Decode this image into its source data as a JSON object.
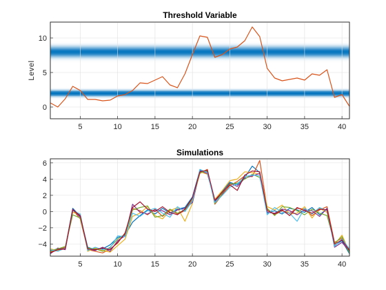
{
  "chart_data": [
    {
      "type": "line",
      "title": "Threshold Variable",
      "xlabel": "",
      "ylabel": "Level",
      "xlim": [
        1,
        41
      ],
      "ylim": [
        -1.7,
        12.3
      ],
      "x_ticks": [
        5,
        10,
        15,
        20,
        25,
        30,
        35,
        40
      ],
      "y_ticks": [
        0,
        5,
        10
      ],
      "grid": true,
      "threshold_bands": [
        {
          "center": 2,
          "spread": 0.9
        },
        {
          "center": 8,
          "spread": 1.6
        }
      ],
      "band_color": "#0072BD",
      "series": [
        {
          "color": "#D95319",
          "x": [
            1,
            2,
            3,
            4,
            5,
            6,
            7,
            8,
            9,
            10,
            11,
            12,
            13,
            14,
            15,
            16,
            17,
            18,
            19,
            20,
            21,
            22,
            23,
            24,
            25,
            26,
            27,
            28,
            29,
            30,
            31,
            32,
            33,
            34,
            35,
            36,
            37,
            38,
            39,
            40,
            41
          ],
          "values": [
            0.6,
            0.0,
            1.2,
            3.0,
            2.4,
            1.1,
            1.1,
            0.9,
            1.0,
            1.6,
            1.8,
            2.4,
            3.5,
            3.4,
            3.9,
            4.4,
            3.2,
            2.8,
            4.8,
            7.6,
            10.3,
            10.1,
            7.2,
            7.6,
            8.4,
            8.7,
            9.6,
            11.6,
            10.2,
            5.6,
            4.2,
            3.8,
            4.0,
            4.2,
            3.9,
            4.8,
            4.6,
            5.4,
            1.4,
            1.8,
            0.1
          ]
        }
      ]
    },
    {
      "type": "line",
      "title": "Simulations",
      "xlabel": "",
      "ylabel": "",
      "xlim": [
        1,
        41
      ],
      "ylim": [
        -5.5,
        6.5
      ],
      "x_ticks": [
        5,
        10,
        15,
        20,
        25,
        30,
        35,
        40
      ],
      "y_ticks": [
        -4,
        -2,
        0,
        2,
        4,
        6
      ],
      "grid": true,
      "series": [
        {
          "color": "#0072BD",
          "x": [
            1,
            2,
            3,
            4,
            5,
            6,
            7,
            8,
            9,
            10,
            11,
            12,
            13,
            14,
            15,
            16,
            17,
            18,
            19,
            20,
            21,
            22,
            23,
            24,
            25,
            26,
            27,
            28,
            29,
            30,
            31,
            32,
            33,
            34,
            35,
            36,
            37,
            38,
            39,
            40,
            41
          ],
          "values": [
            -4.8,
            -4.6,
            -4.5,
            0.4,
            -0.6,
            -4.4,
            -4.7,
            -4.6,
            -4.1,
            -3.2,
            -2.9,
            -1.3,
            -0.5,
            0.2,
            -0.3,
            0.4,
            -0.2,
            0.3,
            0.5,
            1.8,
            5.1,
            4.9,
            1.2,
            2.5,
            3.6,
            3.3,
            4.2,
            5.6,
            4.8,
            -0.2,
            0.1,
            -0.3,
            0.4,
            0.2,
            -0.1,
            0.5,
            -0.4,
            0.3,
            -4.2,
            -3.6,
            -5.2
          ]
        },
        {
          "color": "#D95319",
          "x": [
            1,
            2,
            3,
            4,
            5,
            6,
            7,
            8,
            9,
            10,
            11,
            12,
            13,
            14,
            15,
            16,
            17,
            18,
            19,
            20,
            21,
            22,
            23,
            24,
            25,
            26,
            27,
            28,
            29,
            30,
            31,
            32,
            33,
            34,
            35,
            36,
            37,
            38,
            39,
            40,
            41
          ],
          "values": [
            -5.0,
            -4.7,
            -4.4,
            0.2,
            -0.9,
            -4.7,
            -4.9,
            -5.1,
            -4.6,
            -3.9,
            -2.6,
            0.4,
            0.1,
            -0.4,
            0.3,
            -0.6,
            0.2,
            -0.3,
            0.1,
            1.4,
            4.7,
            5.2,
            0.9,
            2.1,
            3.2,
            3.7,
            4.4,
            4.3,
            6.3,
            0.3,
            -0.4,
            0.1,
            -0.2,
            0.4,
            0.3,
            -0.5,
            0.2,
            0.6,
            -3.8,
            -3.3,
            -4.7
          ]
        },
        {
          "color": "#EDB120",
          "x": [
            1,
            2,
            3,
            4,
            5,
            6,
            7,
            8,
            9,
            10,
            11,
            12,
            13,
            14,
            15,
            16,
            17,
            18,
            19,
            20,
            21,
            22,
            23,
            24,
            25,
            26,
            27,
            28,
            29,
            30,
            31,
            32,
            33,
            34,
            35,
            36,
            37,
            38,
            39,
            40,
            41
          ],
          "values": [
            -4.6,
            -4.8,
            -4.6,
            -0.1,
            -0.4,
            -4.9,
            -4.5,
            -4.8,
            -5.0,
            -4.2,
            -3.4,
            -0.6,
            -0.2,
            0.6,
            -0.5,
            -0.9,
            0.1,
            0.5,
            -1.2,
            1.0,
            4.9,
            4.6,
            1.5,
            2.6,
            3.8,
            4.0,
            4.9,
            4.8,
            4.6,
            0.6,
            0.2,
            0.8,
            -0.3,
            -0.2,
            0.6,
            -0.8,
            0.4,
            -0.1,
            -4.1,
            -2.9,
            -5.0
          ]
        },
        {
          "color": "#7E2F8E",
          "x": [
            1,
            2,
            3,
            4,
            5,
            6,
            7,
            8,
            9,
            10,
            11,
            12,
            13,
            14,
            15,
            16,
            17,
            18,
            19,
            20,
            21,
            22,
            23,
            24,
            25,
            26,
            27,
            28,
            29,
            30,
            31,
            32,
            33,
            34,
            35,
            36,
            37,
            38,
            39,
            40,
            41
          ],
          "values": [
            -5.2,
            -4.5,
            -4.7,
            0.3,
            -0.7,
            -4.6,
            -4.8,
            -4.4,
            -4.9,
            -3.6,
            -3.0,
            0.9,
            -0.1,
            -0.3,
            0.2,
            0.1,
            -0.4,
            0.2,
            0.4,
            1.1,
            5.0,
            4.7,
            1.3,
            2.2,
            3.5,
            3.1,
            4.1,
            4.4,
            4.7,
            -0.1,
            -0.2,
            0.3,
            0.1,
            -0.4,
            0.2,
            0.1,
            -0.6,
            0.4,
            -4.4,
            -3.8,
            -4.9
          ]
        },
        {
          "color": "#77AC30",
          "x": [
            1,
            2,
            3,
            4,
            5,
            6,
            7,
            8,
            9,
            10,
            11,
            12,
            13,
            14,
            15,
            16,
            17,
            18,
            19,
            20,
            21,
            22,
            23,
            24,
            25,
            26,
            27,
            28,
            29,
            30,
            31,
            32,
            33,
            34,
            35,
            36,
            37,
            38,
            39,
            40,
            41
          ],
          "values": [
            -4.9,
            -4.6,
            -4.3,
            -0.4,
            -0.8,
            -4.5,
            -4.6,
            -4.9,
            -4.4,
            -3.4,
            -2.8,
            0.2,
            0.5,
            0.7,
            -0.7,
            -0.5,
            0.3,
            -0.2,
            0.2,
            1.6,
            4.8,
            5.0,
            1.0,
            2.3,
            3.4,
            3.5,
            4.0,
            4.6,
            4.2,
            0.4,
            -0.5,
            0.6,
            0.5,
            0.1,
            -0.4,
            0.3,
            -0.2,
            -0.5,
            -3.9,
            -3.1,
            -5.1
          ]
        },
        {
          "color": "#4DBEEE",
          "x": [
            1,
            2,
            3,
            4,
            5,
            6,
            7,
            8,
            9,
            10,
            11,
            12,
            13,
            14,
            15,
            16,
            17,
            18,
            19,
            20,
            21,
            22,
            23,
            24,
            25,
            26,
            27,
            28,
            29,
            30,
            31,
            32,
            33,
            34,
            35,
            36,
            37,
            38,
            39,
            40,
            41
          ],
          "values": [
            -4.7,
            -4.9,
            -4.5,
            0.1,
            -0.3,
            -4.8,
            -4.4,
            -4.7,
            -4.5,
            -3.0,
            -3.1,
            -0.2,
            -0.6,
            0.1,
            0.4,
            -0.2,
            -0.7,
            0.6,
            0.0,
            1.3,
            5.2,
            4.8,
            1.1,
            2.0,
            3.0,
            3.4,
            4.3,
            4.5,
            4.4,
            -0.4,
            0.5,
            -0.1,
            -0.2,
            -1.2,
            0.4,
            -0.3,
            0.5,
            0.1,
            -4.3,
            -3.4,
            -4.6
          ]
        },
        {
          "color": "#A2142F",
          "x": [
            1,
            2,
            3,
            4,
            5,
            6,
            7,
            8,
            9,
            10,
            11,
            12,
            13,
            14,
            15,
            16,
            17,
            18,
            19,
            20,
            21,
            22,
            23,
            24,
            25,
            26,
            27,
            28,
            29,
            30,
            31,
            32,
            33,
            34,
            35,
            36,
            37,
            38,
            39,
            40,
            41
          ],
          "values": [
            -5.1,
            -4.7,
            -4.6,
            0.2,
            -0.5,
            -4.6,
            -4.7,
            -4.5,
            -4.7,
            -3.8,
            -2.7,
            0.5,
            1.2,
            0.3,
            0.0,
            0.6,
            -0.1,
            -0.4,
            0.3,
            1.7,
            4.9,
            5.1,
            1.4,
            2.4,
            3.3,
            2.6,
            4.5,
            5.0,
            4.9,
            0.1,
            -0.3,
            0.2,
            -0.5,
            0.5,
            0.1,
            -0.2,
            0.3,
            0.2,
            -4.0,
            -3.5,
            -4.8
          ]
        }
      ]
    }
  ]
}
